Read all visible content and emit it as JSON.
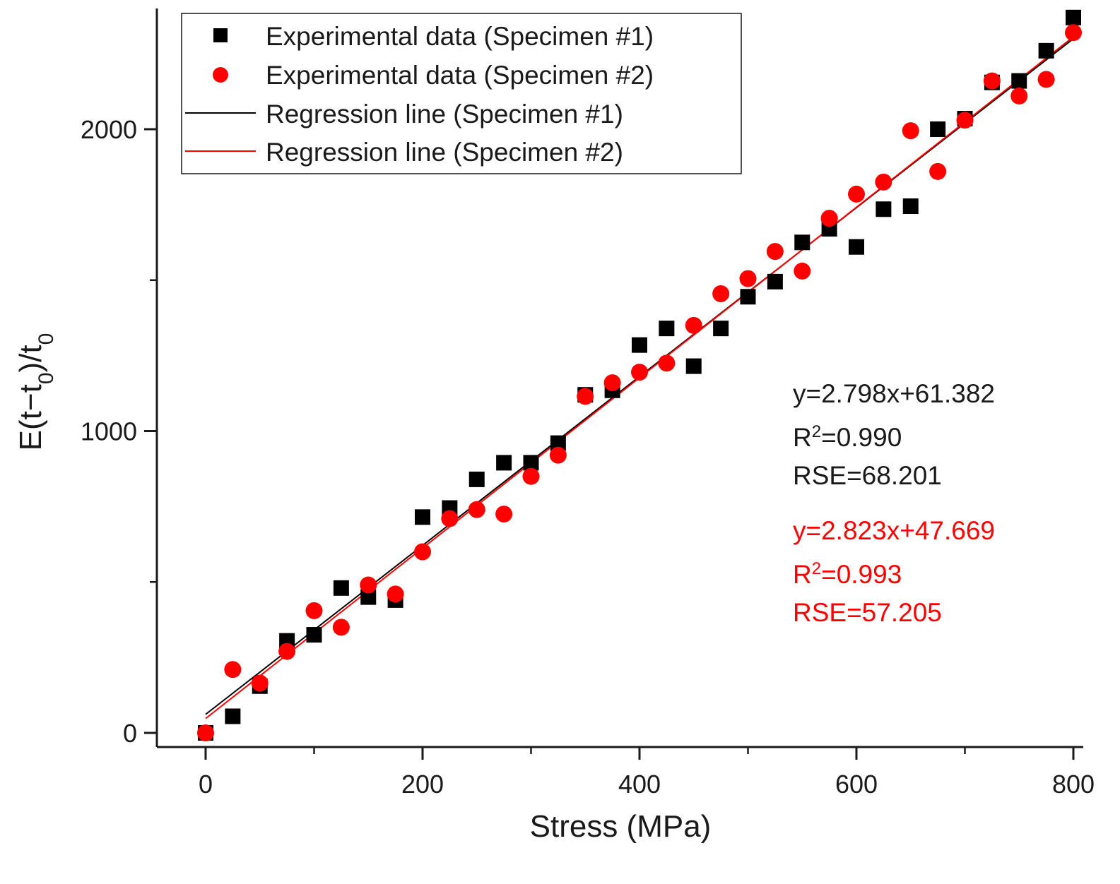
{
  "chart_data": {
    "type": "scatter",
    "title": "",
    "xlabel": "Stress (MPa)",
    "ylabel": "E(t-t0)/t0",
    "ylabel_parts": {
      "a": "E(t−t",
      "sub1": "0",
      "b": ")/t",
      "sub2": "0"
    },
    "xlim": [
      -45,
      810
    ],
    "ylim": [
      -50,
      2450
    ],
    "x_ticks": [
      0,
      200,
      400,
      600,
      800
    ],
    "x_ticks_minor": [
      100,
      300,
      500,
      700
    ],
    "y_ticks": [
      0,
      1000,
      2000
    ],
    "y_ticks_minor": [
      500,
      1500
    ],
    "legend_position": "top-left",
    "series": [
      {
        "name": "Experimental data (Specimen #1)",
        "kind": "scatter",
        "marker": "square",
        "color": "#000000",
        "x": [
          0,
          25,
          50,
          75,
          100,
          125,
          150,
          175,
          200,
          225,
          250,
          275,
          300,
          325,
          350,
          375,
          400,
          425,
          450,
          475,
          500,
          525,
          550,
          575,
          600,
          625,
          650,
          675,
          700,
          725,
          750,
          775,
          800
        ],
        "y": [
          0,
          55,
          155,
          305,
          325,
          480,
          450,
          440,
          715,
          745,
          840,
          895,
          895,
          960,
          1120,
          1135,
          1285,
          1340,
          1215,
          1340,
          1445,
          1495,
          1625,
          1670,
          1610,
          1735,
          1745,
          2000,
          2035,
          2155,
          2160,
          2260,
          2370
        ]
      },
      {
        "name": "Experimental data (Specimen #2)",
        "kind": "scatter",
        "marker": "circle",
        "color": "#ff0000",
        "x": [
          0,
          25,
          50,
          75,
          100,
          125,
          150,
          175,
          200,
          225,
          250,
          275,
          300,
          325,
          350,
          375,
          400,
          425,
          450,
          475,
          500,
          525,
          550,
          575,
          600,
          625,
          650,
          675,
          700,
          725,
          750,
          775,
          800
        ],
        "y": [
          0,
          210,
          165,
          270,
          405,
          350,
          490,
          460,
          600,
          710,
          740,
          725,
          850,
          920,
          1115,
          1160,
          1195,
          1225,
          1350,
          1455,
          1505,
          1595,
          1530,
          1705,
          1785,
          1825,
          1995,
          1860,
          2030,
          2160,
          2110,
          2165,
          2320
        ]
      },
      {
        "name": "Regression line (Specimen #1)",
        "kind": "line",
        "color": "#000000",
        "slope": 2.798,
        "intercept": 61.382,
        "x_range": [
          0,
          800
        ]
      },
      {
        "name": "Regression line (Specimen #2)",
        "kind": "line",
        "color": "#ff0000",
        "slope": 2.823,
        "intercept": 47.669,
        "x_range": [
          0,
          800
        ]
      }
    ],
    "annotations": [
      {
        "color": "#000000",
        "equation": "y=2.798x+61.382",
        "r2_prefix": "R",
        "r2_sup": "2",
        "r2_value": "=0.990",
        "rse": "RSE=68.201"
      },
      {
        "color": "#ff0000",
        "equation": "y=2.823x+47.669",
        "r2_prefix": "R",
        "r2_sup": "2",
        "r2_value": "=0.993",
        "rse": "RSE=57.205"
      }
    ]
  }
}
